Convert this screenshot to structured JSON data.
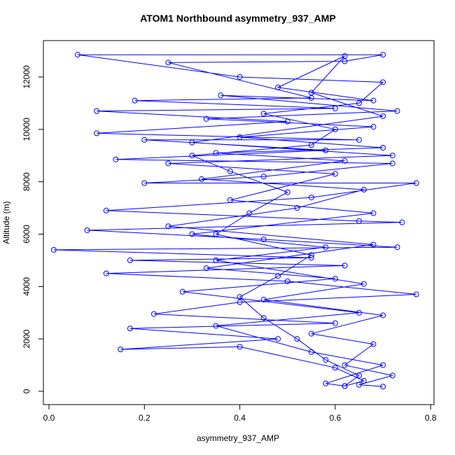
{
  "chart_data": {
    "type": "line",
    "title": "ATOM1 Northbound asymmetry_937_AMP",
    "x_label": "asymmetry_937_AMP",
    "y_label": "Altitude (m)",
    "xlim": [
      -0.0117,
      0.807
    ],
    "ylim": [
      -508,
      13389
    ],
    "xticks": [
      {
        "value": 0,
        "label": "0.0"
      },
      0.2,
      0.4,
      0.6,
      0.8
    ],
    "yticks": [
      0,
      2000,
      4000,
      6000,
      8000,
      10000,
      12000
    ],
    "x": [
      0.62,
      0.65,
      0.58,
      0.52,
      0.45,
      0.4,
      0.48,
      0.55,
      0.35,
      0.42,
      0.5,
      0.38,
      0.3,
      0.55,
      0.6,
      0.45,
      0.65,
      0.7,
      0.4,
      0.06,
      0.7,
      0.62,
      0.25,
      0.55,
      0.18,
      0.6,
      0.1,
      0.5,
      0.1,
      0.65,
      0.2,
      0.58,
      0.14,
      0.72,
      0.45,
      0.2,
      0.77,
      0.55,
      0.12,
      0.65,
      0.74,
      0.08,
      0.45,
      0.73,
      0.01,
      0.55,
      0.17,
      0.62,
      0.12,
      0.5,
      0.77,
      0.4,
      0.22,
      0.6,
      0.17,
      0.48,
      0.15,
      0.4,
      0.6,
      0.66,
      0.62,
      0.58,
      0.7,
      0.55,
      0.35,
      0.65,
      0.28,
      0.6,
      0.33,
      0.68,
      0.25,
      0.52,
      0.66,
      0.32,
      0.62,
      0.35,
      0.7,
      0.4,
      0.68,
      0.33,
      0.73,
      0.36,
      0.68,
      0.48,
      0.62,
      0.55,
      0.7,
      0.3,
      0.72,
      0.25,
      0.6,
      0.38,
      0.68,
      0.3,
      0.58,
      0.35,
      0.66,
      0.45,
      0.7,
      0.55,
      0.68,
      0.62,
      0.72,
      0.65,
      0.7
    ],
    "series": [
      {
        "color": "#0000ff",
        "values": [
          200,
          600,
          1200,
          2000,
          2800,
          3600,
          4400,
          5200,
          6000,
          6800,
          7600,
          8400,
          9000,
          9400,
          10000,
          10600,
          11000,
          11800,
          12000,
          12850,
          12850,
          12600,
          12550,
          11200,
          11100,
          10800,
          10700,
          10300,
          9850,
          9600,
          9600,
          9200,
          8850,
          8700,
          8200,
          7950,
          7950,
          7400,
          6900,
          6500,
          6450,
          6150,
          5800,
          5500,
          5400,
          5100,
          5000,
          4800,
          4500,
          4200,
          3700,
          3400,
          2950,
          2600,
          2400,
          2000,
          1600,
          1700,
          900,
          400,
          200,
          300,
          1000,
          1500,
          2500,
          3000,
          3800,
          4300,
          4700,
          5600,
          6300,
          7000,
          7700,
          8100,
          8800,
          9100,
          9300,
          9700,
          10100,
          10400,
          10700,
          11300,
          11100,
          11600,
          12800,
          11400,
          10500,
          9500,
          9000,
          8700,
          8300,
          7300,
          6800,
          6000,
          5500,
          5000,
          4100,
          3500,
          2900,
          2200,
          1800,
          1000,
          600,
          250,
          180
        ]
      }
    ]
  }
}
